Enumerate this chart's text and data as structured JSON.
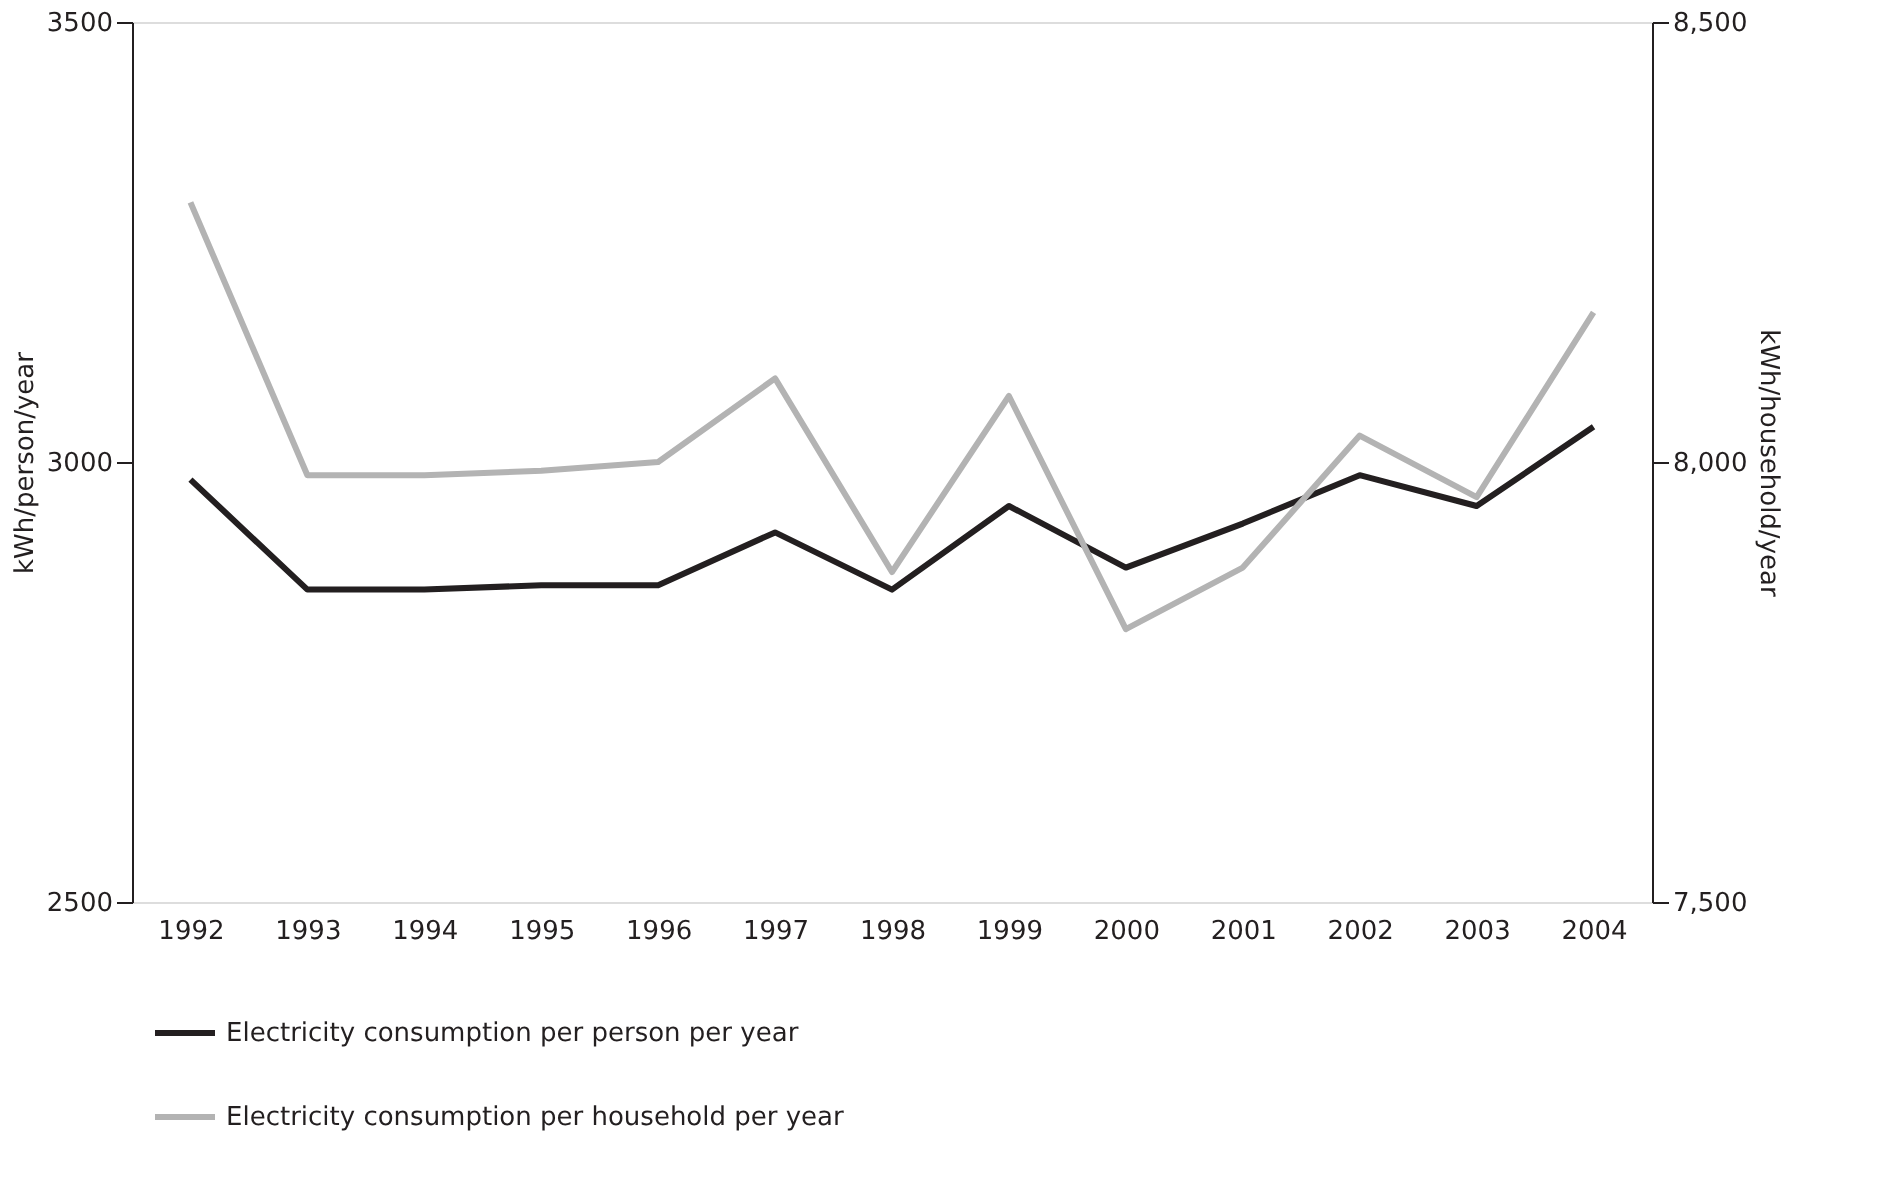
{
  "chart_data": {
    "type": "line",
    "ylabel": "kWh/person/year",
    "y2label": "kWh/household/year",
    "categories": [
      "1992",
      "1993",
      "1994",
      "1995",
      "1996",
      "1997",
      "1998",
      "1999",
      "2000",
      "2001",
      "2002",
      "2003",
      "2004"
    ],
    "series": [
      {
        "name": "Electricity consumption per person per year",
        "color": "#231f20",
        "values": [
          2980,
          2855,
          2855,
          2860,
          2860,
          2920,
          2855,
          2950,
          2880,
          2930,
          2985,
          2950,
          3040
        ]
      },
      {
        "name": "Electricity consumption per household per year",
        "color": "#b3b3b3",
        "axis": "y2",
        "values": [
          8295,
          7985,
          7985,
          7990,
          8000,
          8095,
          7875,
          8075,
          7810,
          7880,
          8030,
          7960,
          8170
        ]
      }
    ],
    "ylim": [
      2500,
      3500
    ],
    "yticks": [
      2500,
      3000,
      3500
    ],
    "y2lim": [
      7500,
      8500
    ],
    "y2ticks": [
      {
        "value": 7500,
        "label": "7,500"
      },
      {
        "value": 8000,
        "label": "8,000"
      },
      {
        "value": 8500,
        "label": "8,500"
      }
    ],
    "grid": false,
    "legend": "bottom",
    "marker": "none",
    "line_style": "solid"
  }
}
